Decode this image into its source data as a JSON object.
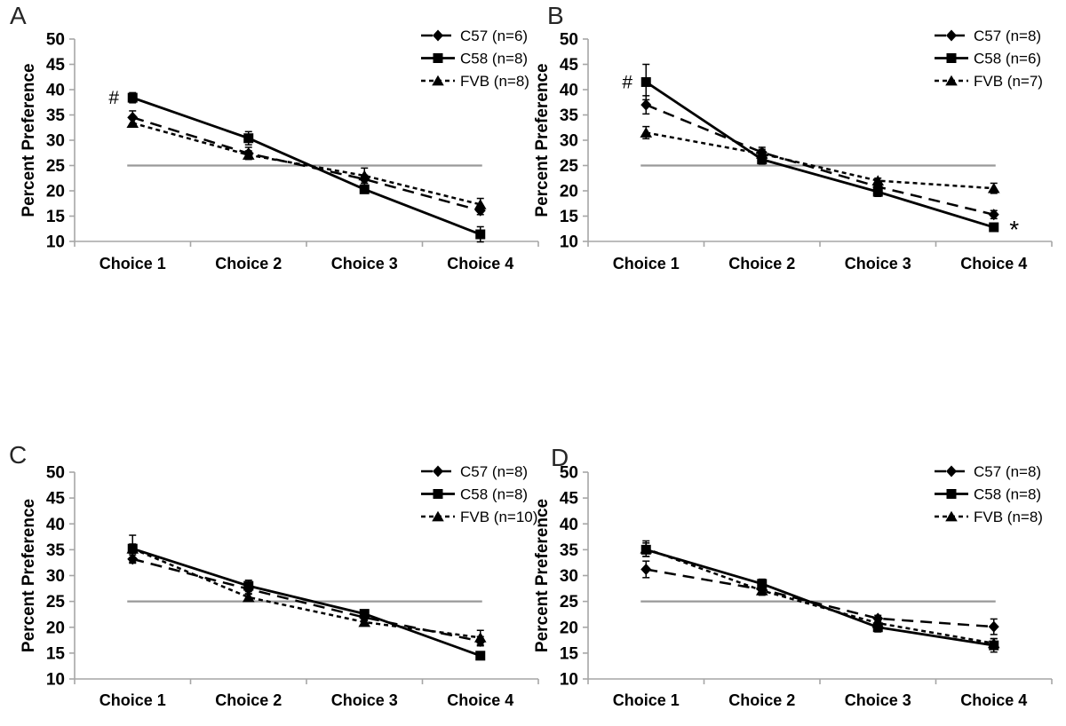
{
  "figure": {
    "background": "#ffffff",
    "axis_color": "#a6a6a6",
    "series_color": "#000000",
    "reference_line_color": "#999999"
  },
  "chart_data": [
    {
      "panel": "A",
      "type": "line",
      "ylabel": "Percent Preference",
      "categories": [
        "Choice 1",
        "Choice 2",
        "Choice 3",
        "Choice 4"
      ],
      "ylim": [
        10,
        50
      ],
      "yticks": [
        50,
        45,
        40,
        35,
        30,
        25,
        20,
        15,
        10
      ],
      "reference_line_y": 25,
      "grid": false,
      "legend_position": "top-right",
      "series": [
        {
          "name": "C57 (n=6)",
          "marker": "diamond",
          "line": "long-dash",
          "values": [
            34.5,
            27.4,
            22.3,
            16.1
          ],
          "errors": [
            1.3,
            1.2,
            0.8,
            0.8
          ]
        },
        {
          "name": "C58 (n=8)",
          "marker": "square",
          "line": "solid",
          "values": [
            38.4,
            30.4,
            20.3,
            11.4
          ],
          "errors": [
            1.0,
            1.3,
            0.8,
            1.5
          ]
        },
        {
          "name": "FVB (n=8)",
          "marker": "triangle",
          "line": "short-dash",
          "values": [
            33.4,
            27.1,
            23.0,
            17.3
          ],
          "errors": [
            0.8,
            0.8,
            1.5,
            1.2
          ]
        }
      ],
      "annotations": [
        {
          "text": "#",
          "series_index": 1,
          "point_index": 0,
          "side": "left"
        }
      ]
    },
    {
      "panel": "B",
      "type": "line",
      "ylabel": "Percent Preference",
      "categories": [
        "Choice 1",
        "Choice 2",
        "Choice 3",
        "Choice 4"
      ],
      "ylim": [
        10,
        50
      ],
      "yticks": [
        50,
        45,
        40,
        35,
        30,
        25,
        20,
        15,
        10
      ],
      "reference_line_y": 25,
      "grid": false,
      "legend_position": "top-right",
      "series": [
        {
          "name": "C57 (n=8)",
          "marker": "diamond",
          "line": "long-dash",
          "values": [
            37.0,
            27.6,
            20.8,
            15.3
          ],
          "errors": [
            1.8,
            1.0,
            0.8,
            0.8
          ]
        },
        {
          "name": "C58 (n=6)",
          "marker": "square",
          "line": "solid",
          "values": [
            41.5,
            26.2,
            19.8,
            12.8
          ],
          "errors": [
            3.5,
            0.9,
            0.9,
            0.7
          ]
        },
        {
          "name": "FVB (n=7)",
          "marker": "triangle",
          "line": "short-dash",
          "values": [
            31.5,
            27.3,
            22.0,
            20.5
          ],
          "errors": [
            1.2,
            0.9,
            0.5,
            1.0
          ]
        }
      ],
      "annotations": [
        {
          "text": "#",
          "series_index": 1,
          "point_index": 0,
          "side": "left"
        },
        {
          "text": "*",
          "series_index": 1,
          "point_index": 3,
          "side": "right"
        }
      ]
    },
    {
      "panel": "C",
      "type": "line",
      "ylabel": "Percent Preference",
      "categories": [
        "Choice 1",
        "Choice 2",
        "Choice 3",
        "Choice 4"
      ],
      "ylim": [
        10,
        50
      ],
      "yticks": [
        50,
        45,
        40,
        35,
        30,
        25,
        20,
        15,
        10
      ],
      "reference_line_y": 25,
      "grid": false,
      "legend_position": "top-right",
      "series": [
        {
          "name": "C57 (n=8)",
          "marker": "diamond",
          "line": "long-dash",
          "values": [
            33.2,
            27.4,
            21.9,
            17.3
          ],
          "errors": [
            0.8,
            0.9,
            0.6,
            0.9
          ]
        },
        {
          "name": "C58 (n=8)",
          "marker": "square",
          "line": "solid",
          "values": [
            35.2,
            28.0,
            22.6,
            14.5
          ],
          "errors": [
            2.6,
            1.1,
            0.6,
            0.6
          ]
        },
        {
          "name": "FVB (n=10)",
          "marker": "triangle",
          "line": "short-dash",
          "values": [
            35.2,
            25.8,
            21.0,
            18.0
          ],
          "errors": [
            0.9,
            0.6,
            0.6,
            1.4
          ]
        }
      ],
      "annotations": []
    },
    {
      "panel": "D",
      "type": "line",
      "ylabel": "Percent Preference",
      "categories": [
        "Choice 1",
        "Choice 2",
        "Choice 3",
        "Choice 4"
      ],
      "ylim": [
        10,
        50
      ],
      "yticks": [
        50,
        45,
        40,
        35,
        30,
        25,
        20,
        15,
        10
      ],
      "reference_line_y": 25,
      "grid": false,
      "legend_position": "top-right",
      "series": [
        {
          "name": "C57 (n=8)",
          "marker": "diamond",
          "line": "long-dash",
          "values": [
            31.2,
            27.3,
            21.7,
            20.1
          ],
          "errors": [
            1.6,
            0.9,
            0.6,
            1.5
          ]
        },
        {
          "name": "C58 (n=8)",
          "marker": "square",
          "line": "solid",
          "values": [
            35.0,
            28.4,
            20.0,
            16.5
          ],
          "errors": [
            1.3,
            0.9,
            0.9,
            1.3
          ]
        },
        {
          "name": "FVB (n=8)",
          "marker": "triangle",
          "line": "short-dash",
          "values": [
            35.2,
            27.1,
            20.8,
            16.9
          ],
          "errors": [
            1.5,
            0.9,
            0.9,
            0.9
          ]
        }
      ],
      "annotations": []
    }
  ]
}
